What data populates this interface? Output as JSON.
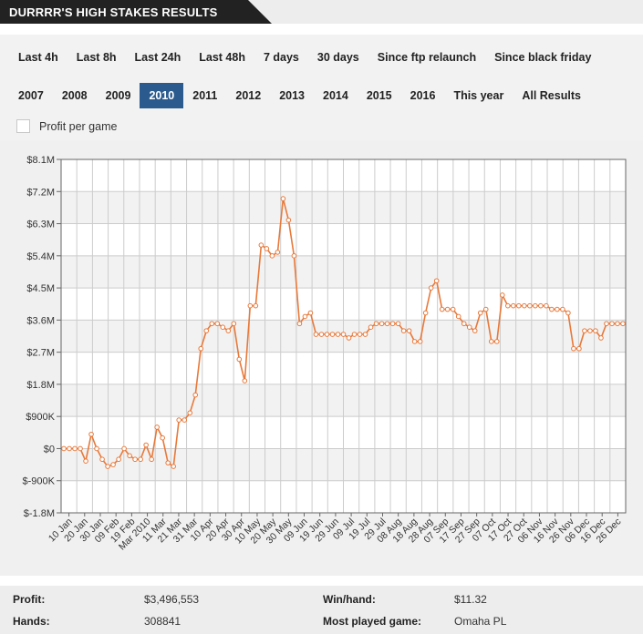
{
  "header": {
    "title": "DURRRR'S HIGH STAKES RESULTS"
  },
  "filters": {
    "row1": [
      {
        "label": "Last 4h"
      },
      {
        "label": "Last 8h"
      },
      {
        "label": "Last 24h"
      },
      {
        "label": "Last 48h"
      },
      {
        "label": "7 days"
      },
      {
        "label": "30 days"
      },
      {
        "label": "Since ftp relaunch"
      },
      {
        "label": "Since black friday"
      }
    ],
    "row2": [
      {
        "label": "2007"
      },
      {
        "label": "2008"
      },
      {
        "label": "2009"
      },
      {
        "label": "2010",
        "active": true
      },
      {
        "label": "2011"
      },
      {
        "label": "2012"
      },
      {
        "label": "2013"
      },
      {
        "label": "2014"
      },
      {
        "label": "2015"
      },
      {
        "label": "2016"
      },
      {
        "label": "This year"
      },
      {
        "label": "All Results"
      }
    ],
    "profit_per_game_label": "Profit per game"
  },
  "chart_data": {
    "type": "line",
    "x_tick_labels": [
      "10 Jan",
      "20 Jan",
      "30 Jan",
      "09 Feb",
      "19 Feb",
      "Mar 2010",
      "11 Mar",
      "21 Mar",
      "31 Mar",
      "10 Apr",
      "20 Apr",
      "30 Apr",
      "10 May",
      "20 May",
      "30 May",
      "09 Jun",
      "19 Jun",
      "29 Jun",
      "09 Jul",
      "19 Jul",
      "29 Jul",
      "08 Aug",
      "18 Aug",
      "28 Aug",
      "07 Sep",
      "17 Sep",
      "27 Sep",
      "07 Oct",
      "17 Oct",
      "27 Oct",
      "06 Nov",
      "16 Nov",
      "26 Nov",
      "06 Dec",
      "16 Dec",
      "26 Dec"
    ],
    "y_tick_labels": [
      "$8.1M",
      "$7.2M",
      "$6.3M",
      "$5.4M",
      "$4.5M",
      "$3.6M",
      "$2.7M",
      "$1.8M",
      "$900K",
      "$0",
      "$-900K",
      "$-1.8M"
    ],
    "ylim": [
      -1.8,
      8.1
    ],
    "y_unit": "$M",
    "series": [
      {
        "color": "#e8793a",
        "points": [
          [
            0,
            0.0
          ],
          [
            1,
            0.0
          ],
          [
            2,
            0.0
          ],
          [
            3,
            0.0
          ],
          [
            4,
            -0.35
          ],
          [
            5,
            0.4
          ],
          [
            6,
            0.0
          ],
          [
            7,
            -0.3
          ],
          [
            8,
            -0.5
          ],
          [
            9,
            -0.45
          ],
          [
            10,
            -0.3
          ],
          [
            11,
            0.0
          ],
          [
            12,
            -0.2
          ],
          [
            13,
            -0.3
          ],
          [
            14,
            -0.3
          ],
          [
            15,
            0.1
          ],
          [
            16,
            -0.3
          ],
          [
            17,
            0.6
          ],
          [
            18,
            0.3
          ],
          [
            19,
            -0.4
          ],
          [
            20,
            -0.5
          ],
          [
            21,
            0.8
          ],
          [
            22,
            0.8
          ],
          [
            23,
            1.0
          ],
          [
            24,
            1.5
          ],
          [
            25,
            2.8
          ],
          [
            26,
            3.3
          ],
          [
            27,
            3.5
          ],
          [
            28,
            3.5
          ],
          [
            29,
            3.4
          ],
          [
            30,
            3.3
          ],
          [
            31,
            3.5
          ],
          [
            32,
            2.5
          ],
          [
            33,
            1.9
          ],
          [
            34,
            4.0
          ],
          [
            35,
            4.0
          ],
          [
            36,
            5.7
          ],
          [
            37,
            5.6
          ],
          [
            38,
            5.4
          ],
          [
            39,
            5.5
          ],
          [
            40,
            7.0
          ],
          [
            41,
            6.4
          ],
          [
            42,
            5.4
          ],
          [
            43,
            3.5
          ],
          [
            44,
            3.7
          ],
          [
            45,
            3.8
          ],
          [
            46,
            3.2
          ],
          [
            47,
            3.2
          ],
          [
            48,
            3.2
          ],
          [
            49,
            3.2
          ],
          [
            50,
            3.2
          ],
          [
            51,
            3.2
          ],
          [
            52,
            3.1
          ],
          [
            53,
            3.2
          ],
          [
            54,
            3.2
          ],
          [
            55,
            3.2
          ],
          [
            56,
            3.4
          ],
          [
            57,
            3.5
          ],
          [
            58,
            3.5
          ],
          [
            59,
            3.5
          ],
          [
            60,
            3.5
          ],
          [
            61,
            3.5
          ],
          [
            62,
            3.3
          ],
          [
            63,
            3.3
          ],
          [
            64,
            3.0
          ],
          [
            65,
            3.0
          ],
          [
            66,
            3.8
          ],
          [
            67,
            4.5
          ],
          [
            68,
            4.7
          ],
          [
            69,
            3.9
          ],
          [
            70,
            3.9
          ],
          [
            71,
            3.9
          ],
          [
            72,
            3.7
          ],
          [
            73,
            3.5
          ],
          [
            74,
            3.4
          ],
          [
            75,
            3.3
          ],
          [
            76,
            3.8
          ],
          [
            77,
            3.9
          ],
          [
            78,
            3.0
          ],
          [
            79,
            3.0
          ],
          [
            80,
            4.3
          ],
          [
            81,
            4.0
          ],
          [
            82,
            4.0
          ],
          [
            83,
            4.0
          ],
          [
            84,
            4.0
          ],
          [
            85,
            4.0
          ],
          [
            86,
            4.0
          ],
          [
            87,
            4.0
          ],
          [
            88,
            4.0
          ],
          [
            89,
            3.9
          ],
          [
            90,
            3.9
          ],
          [
            91,
            3.9
          ],
          [
            92,
            3.8
          ],
          [
            93,
            2.8
          ],
          [
            94,
            2.8
          ],
          [
            95,
            3.3
          ],
          [
            96,
            3.3
          ],
          [
            97,
            3.3
          ],
          [
            98,
            3.1
          ],
          [
            99,
            3.5
          ],
          [
            100,
            3.5
          ],
          [
            101,
            3.5
          ],
          [
            102,
            3.5
          ]
        ]
      }
    ]
  },
  "stats": {
    "profit_label": "Profit:",
    "profit_value": "$3,496,553",
    "hands_label": "Hands:",
    "hands_value": "308841",
    "winhand_label": "Win/hand:",
    "winhand_value": "$11.32",
    "most_played_label": "Most played game:",
    "most_played_value": "Omaha PL"
  }
}
